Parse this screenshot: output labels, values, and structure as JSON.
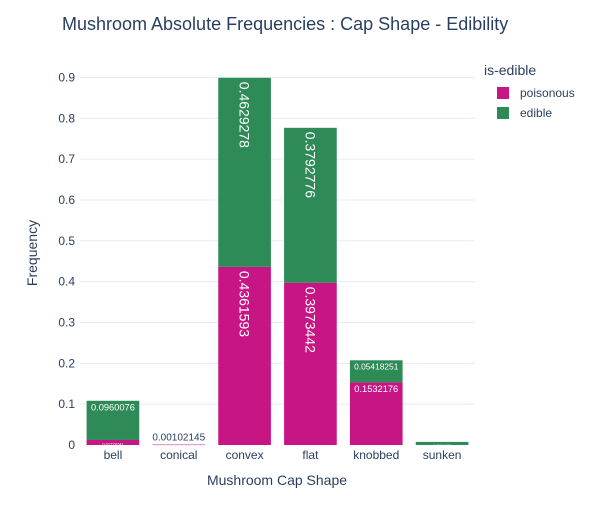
{
  "chart_data": {
    "type": "bar",
    "barmode": "stack",
    "title": "Mushroom Absolute Frequencies : Cap Shape - Edibility",
    "xlabel": "Mushroom Cap Shape",
    "ylabel": "Frequency",
    "ylim": [
      0,
      0.95
    ],
    "yticks": [
      0,
      0.1,
      0.2,
      0.3,
      0.4,
      0.5,
      0.6,
      0.7,
      0.8,
      0.9
    ],
    "ytick_labels": [
      "0",
      "0.1",
      "0.2",
      "0.3",
      "0.4",
      "0.5",
      "0.6",
      "0.7",
      "0.8",
      "0.9"
    ],
    "grid": true,
    "legend_title": "is-edible",
    "legend_position": "top-right",
    "categories": [
      "bell",
      "conical",
      "convex",
      "flat",
      "knobbed",
      "sunken"
    ],
    "series": [
      {
        "name": "poisonous",
        "color": "#c71585",
        "values": [
          0.01228741,
          0.00102145,
          0.4361593,
          0.3973442,
          0.1532176,
          0
        ],
        "labels": [
          "0.01228741",
          "0.00102145",
          "0.4361593",
          "0.3973442",
          "0.1532176",
          ""
        ]
      },
      {
        "name": "edible",
        "color": "#2e8b57",
        "values": [
          0.0960076,
          0,
          0.4629278,
          0.3792776,
          0.05418251,
          0.007604563
        ],
        "labels": [
          "0.0960076",
          "",
          "0.4629278",
          "0.3792776",
          "0.05418251",
          "0.007604563"
        ]
      }
    ]
  }
}
